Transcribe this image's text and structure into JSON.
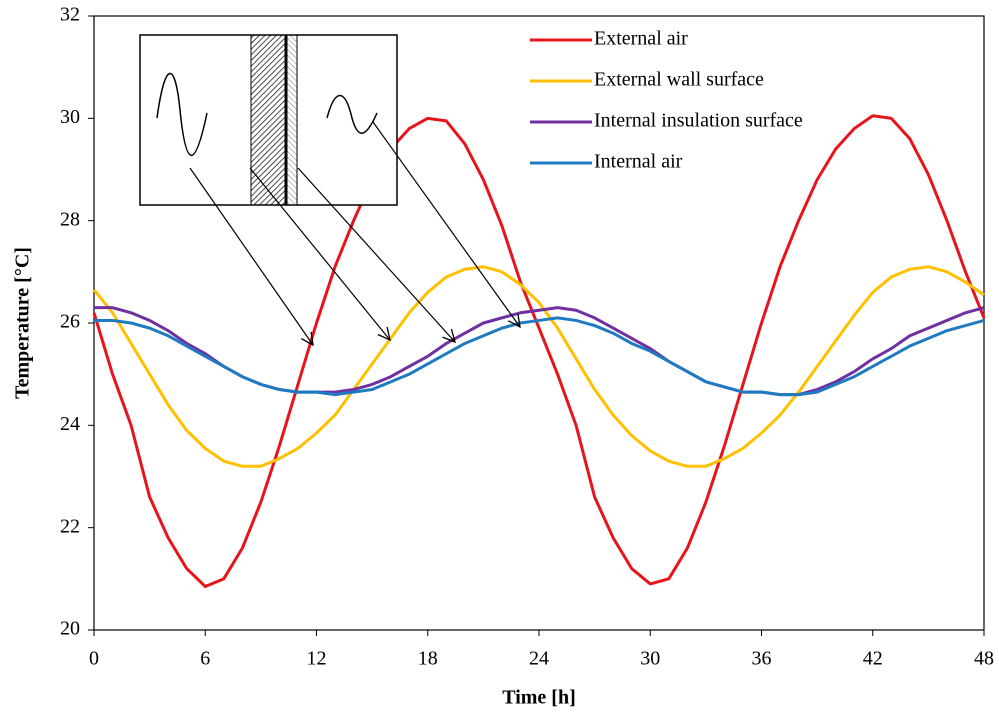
{
  "chart_data": {
    "type": "line",
    "xlabel": "Time [h]",
    "ylabel": "Temperature [°C]",
    "x": [
      0,
      1,
      2,
      3,
      4,
      5,
      6,
      7,
      8,
      9,
      10,
      11,
      12,
      13,
      14,
      15,
      16,
      17,
      18,
      19,
      20,
      21,
      22,
      23,
      24,
      25,
      26,
      27,
      28,
      29,
      30,
      31,
      32,
      33,
      34,
      35,
      36,
      37,
      38,
      39,
      40,
      41,
      42,
      43,
      44,
      45,
      46,
      47,
      48
    ],
    "xlim": [
      0,
      48
    ],
    "xticks": [
      0,
      6,
      12,
      18,
      24,
      30,
      36,
      42,
      48
    ],
    "ylim": [
      20,
      32
    ],
    "yticks": [
      20,
      22,
      24,
      26,
      28,
      30,
      32
    ],
    "legend": "upper right",
    "grid": false,
    "series": [
      {
        "name": "External air",
        "color": "#e8141c",
        "values": [
          26.2,
          25.0,
          24.0,
          22.6,
          21.8,
          21.2,
          20.85,
          21.0,
          21.6,
          22.5,
          23.6,
          24.8,
          26.0,
          27.1,
          28.0,
          28.8,
          29.4,
          29.8,
          30.0,
          29.95,
          29.5,
          28.8,
          27.9,
          26.8,
          25.9,
          25.0,
          24.0,
          22.6,
          21.8,
          21.2,
          20.9,
          21.0,
          21.6,
          22.5,
          23.6,
          24.8,
          26.0,
          27.1,
          28.0,
          28.8,
          29.4,
          29.8,
          30.05,
          30.0,
          29.6,
          28.9,
          28.0,
          27.0,
          26.1
        ]
      },
      {
        "name": "External wall surface",
        "color": "#ffc000",
        "values": [
          26.65,
          26.2,
          25.6,
          25.0,
          24.4,
          23.9,
          23.55,
          23.3,
          23.2,
          23.2,
          23.35,
          23.55,
          23.85,
          24.2,
          24.7,
          25.2,
          25.7,
          26.2,
          26.6,
          26.9,
          27.05,
          27.1,
          27.0,
          26.75,
          26.4,
          25.9,
          25.3,
          24.7,
          24.2,
          23.8,
          23.5,
          23.3,
          23.2,
          23.2,
          23.35,
          23.55,
          23.85,
          24.2,
          24.65,
          25.15,
          25.65,
          26.15,
          26.6,
          26.9,
          27.05,
          27.1,
          27.0,
          26.8,
          26.55
        ]
      },
      {
        "name": "Internal insulation surface",
        "color": "#7030a0",
        "values": [
          26.3,
          26.3,
          26.2,
          26.05,
          25.85,
          25.6,
          25.4,
          25.15,
          24.95,
          24.8,
          24.7,
          24.65,
          24.65,
          24.65,
          24.7,
          24.8,
          24.95,
          25.15,
          25.35,
          25.6,
          25.8,
          26.0,
          26.1,
          26.2,
          26.25,
          26.3,
          26.25,
          26.1,
          25.9,
          25.7,
          25.5,
          25.25,
          25.05,
          24.85,
          24.75,
          24.65,
          24.65,
          24.6,
          24.6,
          24.7,
          24.85,
          25.05,
          25.3,
          25.5,
          25.75,
          25.9,
          26.05,
          26.2,
          26.3
        ]
      },
      {
        "name": "Internal air",
        "color": "#1f7bc1",
        "values": [
          26.05,
          26.05,
          26.0,
          25.9,
          25.75,
          25.55,
          25.35,
          25.15,
          24.95,
          24.8,
          24.7,
          24.65,
          24.65,
          24.6,
          24.65,
          24.7,
          24.85,
          25.0,
          25.2,
          25.4,
          25.6,
          25.75,
          25.9,
          26.0,
          26.05,
          26.1,
          26.05,
          25.95,
          25.8,
          25.6,
          25.45,
          25.25,
          25.05,
          24.85,
          24.75,
          24.65,
          24.65,
          24.6,
          24.6,
          24.65,
          24.8,
          24.95,
          25.15,
          25.35,
          25.55,
          25.7,
          25.85,
          25.95,
          26.05
        ]
      }
    ]
  }
}
